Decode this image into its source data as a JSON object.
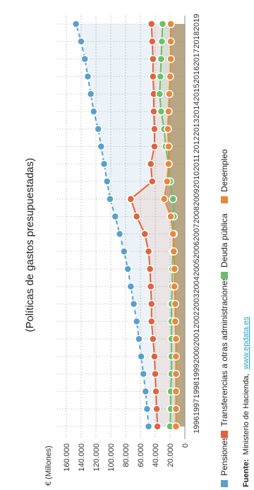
{
  "chart_data": {
    "type": "line",
    "title": "(Políticas de gastos presupuestadas)",
    "ylabel": "€ (Millones)",
    "x": [
      "1996",
      "1997",
      "1998",
      "1999",
      "2000",
      "2001",
      "2002",
      "2003",
      "2004",
      "2005",
      "2006",
      "2007",
      "2008",
      "2009",
      "2010",
      "2011",
      "2012",
      "2013",
      "2014",
      "2015",
      "2016",
      "2017",
      "2018",
      "2019"
    ],
    "ylim": [
      0,
      160000
    ],
    "yticks": [
      0,
      20000,
      40000,
      60000,
      80000,
      100000,
      120000,
      140000,
      160000
    ],
    "ytick_labels": [
      "0",
      "20.000",
      "40.000",
      "60.000",
      "80.000",
      "100.000",
      "120.000",
      "140.000",
      "160.000"
    ],
    "grid": true,
    "legend_position": "bottom",
    "orientation": "rotated-90-clockwise",
    "series": [
      {
        "name": "Pensiones",
        "color": "#5a9fc9",
        "values": [
          49000,
          51000,
          53000,
          56000,
          59000,
          62000,
          65000,
          69000,
          73000,
          77000,
          82000,
          88000,
          94000,
          101000,
          105000,
          109000,
          113000,
          117000,
          123000,
          127000,
          131000,
          135000,
          140000,
          147000
        ]
      },
      {
        "name": "Transferencias a otras administraciones",
        "color": "#e0633d",
        "values": [
          37000,
          38000,
          39000,
          40000,
          41000,
          43000,
          45000,
          45000,
          46000,
          47000,
          49000,
          54000,
          65000,
          73000,
          44000,
          46000,
          41000,
          41000,
          42000,
          42000,
          43000,
          43000,
          44000,
          45000
        ]
      },
      {
        "name": "Deuda pública",
        "color": "#6abf69",
        "values": [
          20000,
          19000,
          19000,
          18000,
          18000,
          18000,
          18000,
          18000,
          17000,
          17000,
          16000,
          15000,
          15000,
          16000,
          20000,
          22000,
          26000,
          28000,
          32000,
          34000,
          33000,
          32000,
          31000,
          30000
        ]
      },
      {
        "name": "Desempleo",
        "color": "#e8883a",
        "values": [
          12000,
          12000,
          12000,
          12000,
          12000,
          12000,
          13000,
          13000,
          14000,
          14000,
          15000,
          16000,
          19000,
          28000,
          24000,
          22000,
          22000,
          23000,
          22000,
          21000,
          20000,
          19000,
          19000,
          19000
        ]
      }
    ]
  },
  "source": {
    "label": "Fuente:",
    "text": "Ministerio de Hacienda,",
    "link": "www.epdata.es",
    "link_color": "#27a3c9"
  }
}
